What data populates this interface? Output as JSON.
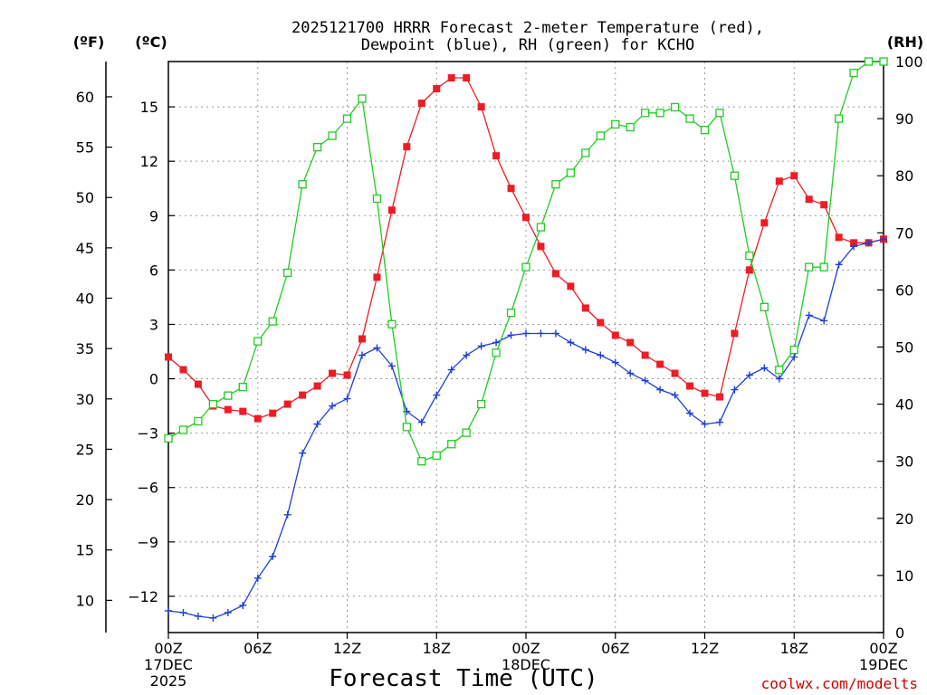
{
  "page": {
    "title_line1": "2025121700 HRRR Forecast 2-meter Temperature (red),",
    "title_line2": "Dewpoint (blue), RH (green) for KCHO",
    "credit": "coolwx.com/modelts"
  },
  "colors": {
    "temperature": "#ee1c25",
    "dewpoint": "#1f3fd9",
    "rh": "#22cc22",
    "credit": "#d00000"
  },
  "chart_data": {
    "type": "line",
    "title": "2025121700 HRRR Forecast 2-meter Temperature (red), Dewpoint (blue), RH (green) for KCHO",
    "xlabel": "Forecast Time (UTC)",
    "x_hours_range": [
      0,
      48
    ],
    "x_ticks": [
      {
        "hour": 0,
        "label": "00Z",
        "sub1": "17DEC",
        "sub2": "2025"
      },
      {
        "hour": 6,
        "label": "06Z",
        "sub1": "",
        "sub2": ""
      },
      {
        "hour": 12,
        "label": "12Z",
        "sub1": "",
        "sub2": ""
      },
      {
        "hour": 18,
        "label": "18Z",
        "sub1": "",
        "sub2": ""
      },
      {
        "hour": 24,
        "label": "00Z",
        "sub1": "18DEC",
        "sub2": ""
      },
      {
        "hour": 30,
        "label": "06Z",
        "sub1": "",
        "sub2": ""
      },
      {
        "hour": 36,
        "label": "12Z",
        "sub1": "",
        "sub2": ""
      },
      {
        "hour": 42,
        "label": "18Z",
        "sub1": "",
        "sub2": ""
      },
      {
        "hour": 48,
        "label": "00Z",
        "sub1": "19DEC",
        "sub2": ""
      }
    ],
    "axes": {
      "celsius": {
        "unit_label": "(ºC)",
        "range": [
          -14,
          17.5
        ],
        "ticks": [
          -12,
          -9,
          -6,
          -3,
          0,
          3,
          6,
          9,
          12,
          15
        ]
      },
      "fahrenheit": {
        "unit_label": "(ºF)",
        "ticks": [
          10,
          15,
          20,
          25,
          30,
          35,
          40,
          45,
          50,
          55,
          60
        ]
      },
      "rh": {
        "unit_label": "(RH)",
        "range": [
          0,
          100
        ],
        "ticks": [
          0,
          10,
          20,
          30,
          40,
          50,
          60,
          70,
          80,
          90,
          100
        ]
      }
    },
    "grid": true,
    "series": [
      {
        "name": "Temperature",
        "axis": "celsius",
        "marker": "filled-square",
        "x": [
          0,
          1,
          2,
          3,
          4,
          5,
          6,
          7,
          8,
          9,
          10,
          11,
          12,
          13,
          14,
          15,
          16,
          17,
          18,
          19,
          20,
          21,
          22,
          23,
          24,
          25,
          26,
          27,
          28,
          29,
          30,
          31,
          32,
          33,
          34,
          35,
          36,
          37,
          38,
          39,
          40,
          41,
          42,
          43,
          44,
          45,
          46,
          47,
          48
        ],
        "values": [
          1.2,
          0.5,
          -0.3,
          -1.5,
          -1.7,
          -1.8,
          -2.2,
          -1.9,
          -1.4,
          -0.9,
          -0.4,
          0.3,
          0.2,
          2.2,
          5.6,
          9.3,
          12.8,
          15.2,
          16.0,
          16.6,
          16.6,
          15.0,
          12.3,
          10.5,
          8.9,
          7.3,
          5.8,
          5.1,
          3.9,
          3.1,
          2.4,
          2.0,
          1.3,
          0.8,
          0.3,
          -0.4,
          -0.8,
          -1.0,
          2.5,
          6.0,
          8.6,
          10.9,
          11.2,
          9.9,
          9.6,
          7.8,
          7.5,
          7.5,
          7.7
        ]
      },
      {
        "name": "Dewpoint",
        "axis": "celsius",
        "marker": "plus",
        "x": [
          0,
          1,
          2,
          3,
          4,
          5,
          6,
          7,
          8,
          9,
          10,
          11,
          12,
          13,
          14,
          15,
          16,
          17,
          18,
          19,
          20,
          21,
          22,
          23,
          24,
          25,
          26,
          27,
          28,
          29,
          30,
          31,
          32,
          33,
          34,
          35,
          36,
          37,
          38,
          39,
          40,
          41,
          42,
          43,
          44,
          45,
          46,
          47,
          48
        ],
        "values": [
          -12.8,
          -12.9,
          -13.1,
          -13.2,
          -12.9,
          -12.5,
          -11.0,
          -9.8,
          -7.5,
          -4.1,
          -2.5,
          -1.5,
          -1.1,
          1.3,
          1.7,
          0.7,
          -1.8,
          -2.4,
          -0.9,
          0.5,
          1.3,
          1.8,
          2.0,
          2.4,
          2.5,
          2.5,
          2.5,
          2.0,
          1.6,
          1.3,
          0.9,
          0.3,
          -0.1,
          -0.6,
          -0.9,
          -1.9,
          -2.5,
          -2.4,
          -0.6,
          0.2,
          0.6,
          0.0,
          1.2,
          3.5,
          3.2,
          6.3,
          7.3,
          7.5,
          7.7
        ]
      },
      {
        "name": "RH",
        "axis": "rh",
        "marker": "open-square",
        "x": [
          0,
          1,
          2,
          3,
          4,
          5,
          6,
          7,
          8,
          9,
          10,
          11,
          12,
          13,
          14,
          15,
          16,
          17,
          18,
          19,
          20,
          21,
          22,
          23,
          24,
          25,
          26,
          27,
          28,
          29,
          30,
          31,
          32,
          33,
          34,
          35,
          36,
          37,
          38,
          39,
          40,
          41,
          42,
          43,
          44,
          45,
          46,
          47,
          48
        ],
        "values": [
          34,
          35.5,
          37,
          40,
          41.5,
          43,
          51,
          54.5,
          63,
          78.5,
          85,
          87,
          90,
          93.5,
          76,
          54,
          36,
          30,
          31,
          33,
          35,
          40,
          49,
          56,
          64,
          71,
          78.5,
          80.5,
          84,
          87,
          89,
          88.5,
          91,
          91,
          92,
          90,
          88,
          91,
          80,
          66,
          57,
          46,
          49.5,
          64,
          64,
          90,
          98,
          100,
          100
        ]
      }
    ]
  }
}
